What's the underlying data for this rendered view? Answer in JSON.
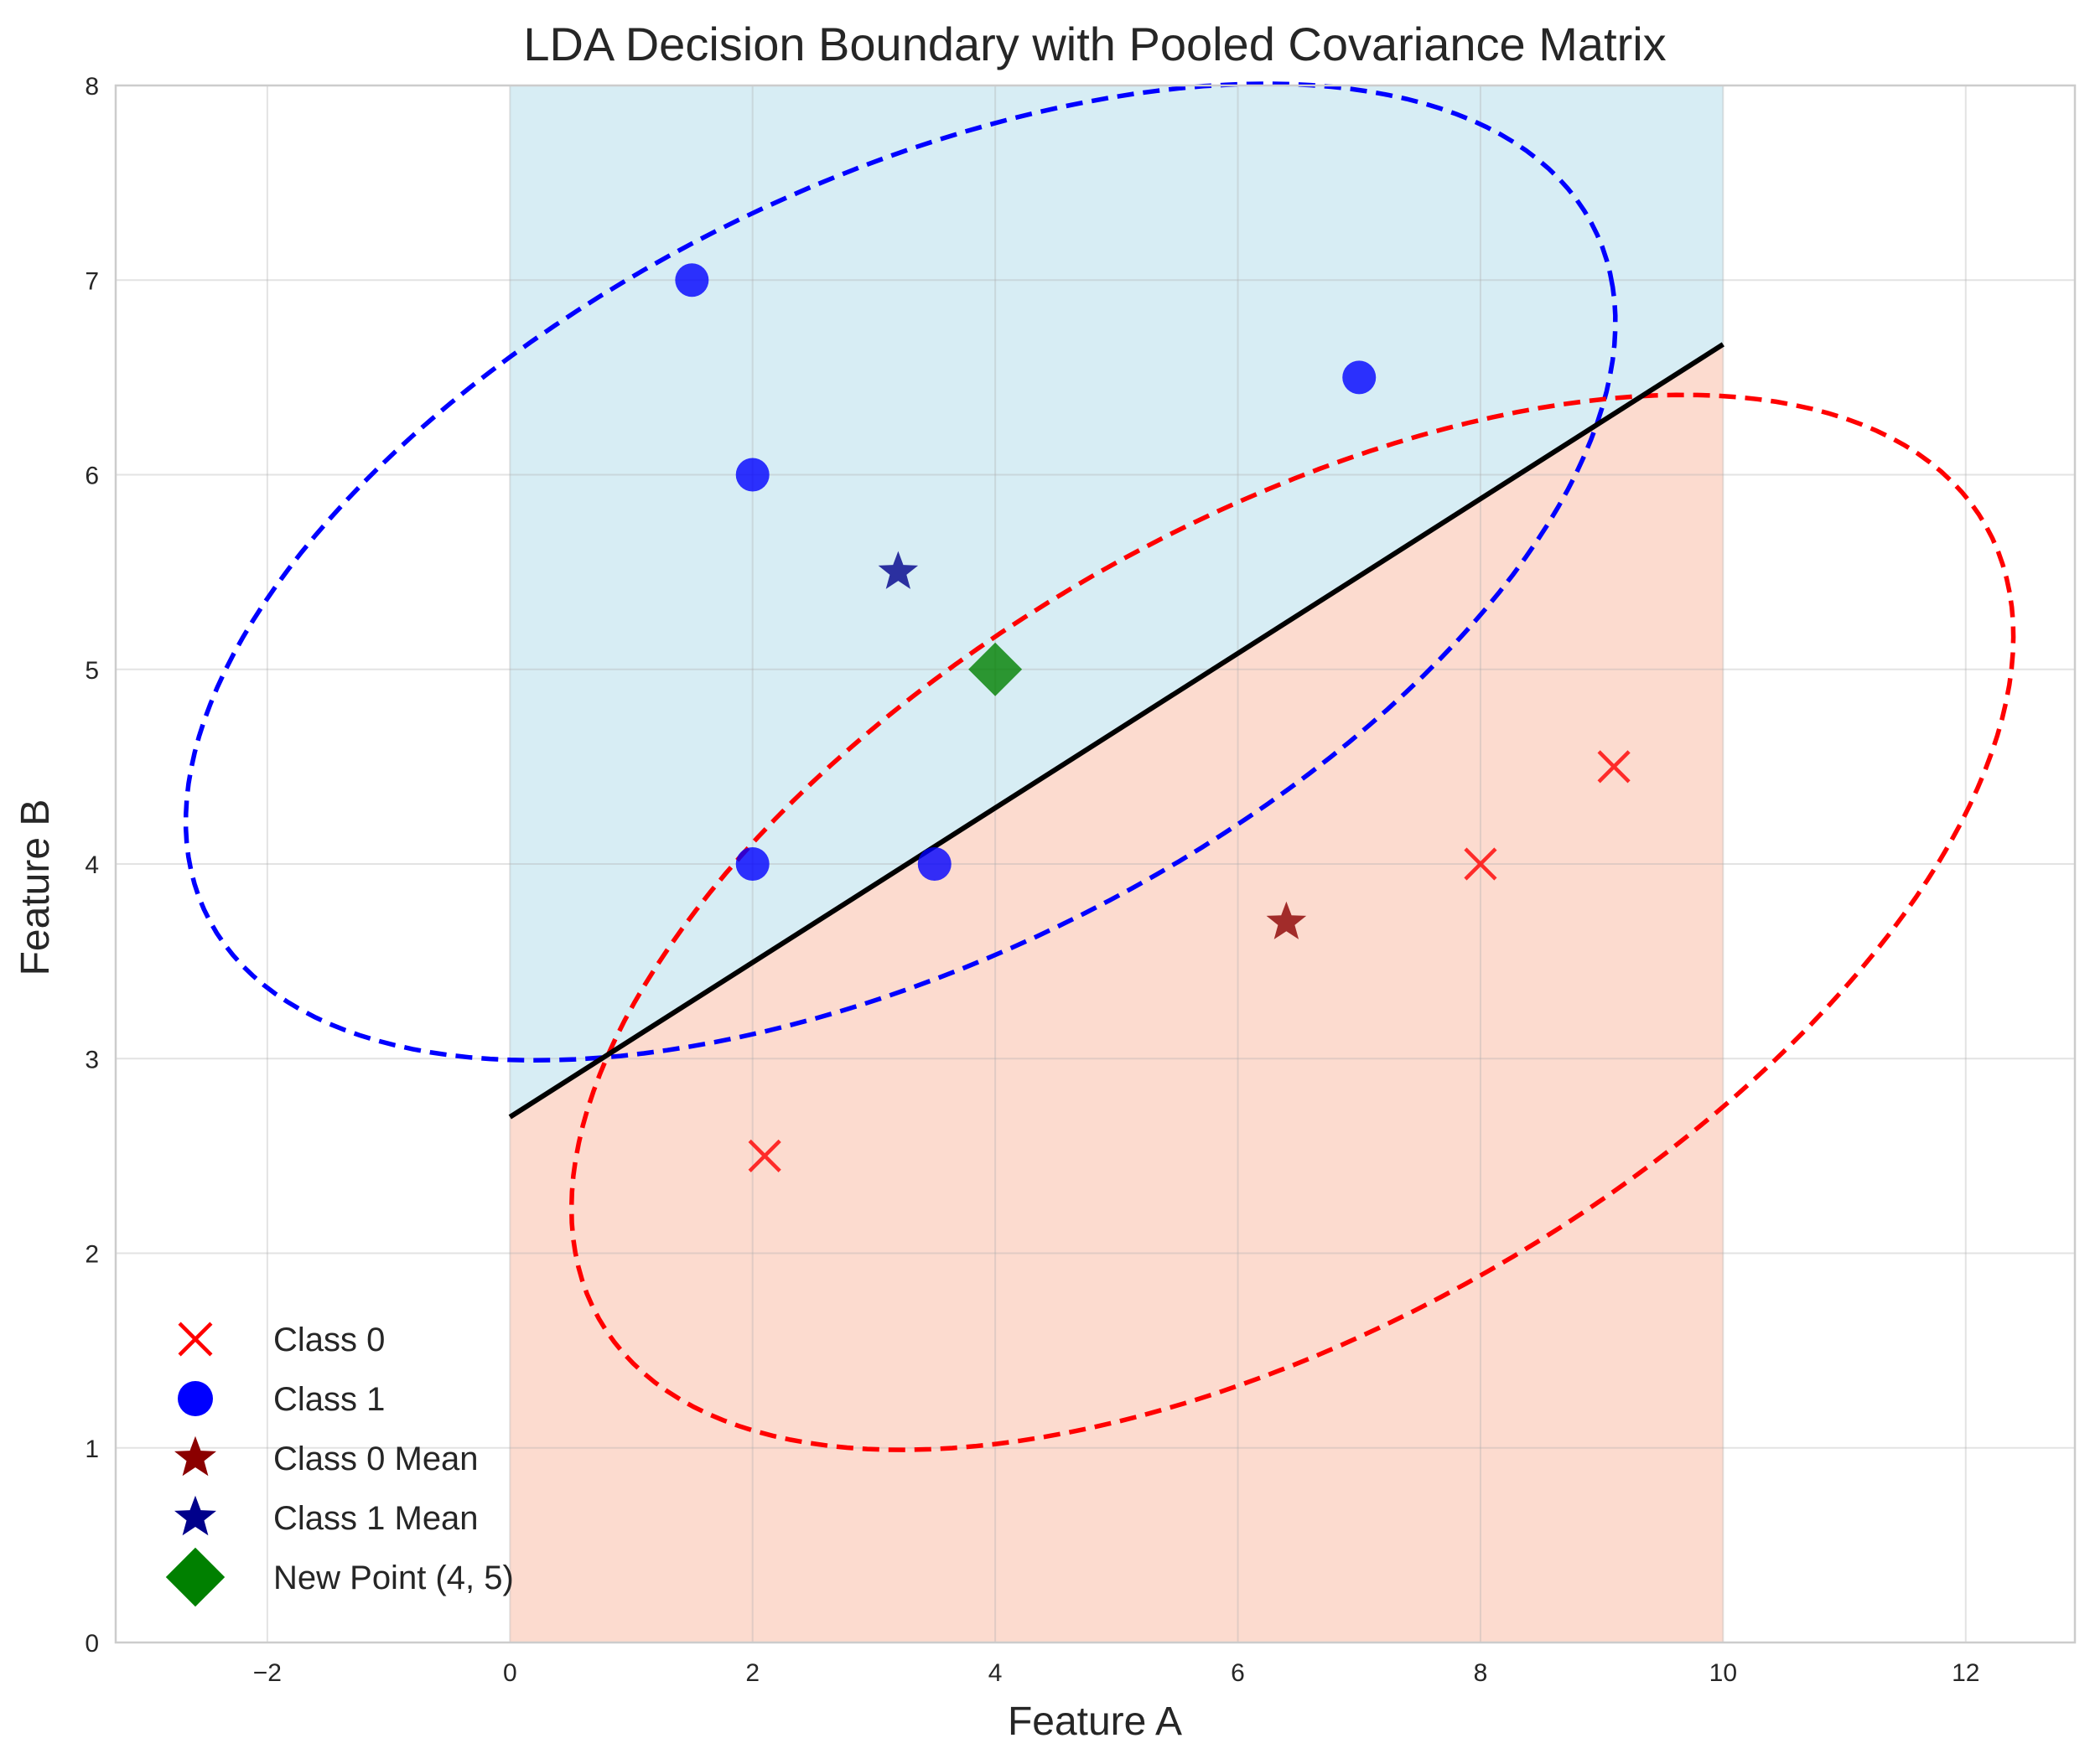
{
  "chart_data": {
    "type": "scatter",
    "title": "LDA Decision Boundary with Pooled Covariance Matrix",
    "xlabel": "Feature A",
    "ylabel": "Feature B",
    "xlim": [
      -3.25,
      12.9
    ],
    "ylim": [
      0,
      8
    ],
    "xticks": [
      -2,
      0,
      2,
      4,
      6,
      8,
      10,
      12
    ],
    "xtick_labels": [
      "−2",
      "0",
      "2",
      "4",
      "6",
      "8",
      "10",
      "12"
    ],
    "yticks": [
      0,
      1,
      2,
      3,
      4,
      5,
      6,
      7,
      8
    ],
    "ytick_labels": [
      "0",
      "1",
      "2",
      "3",
      "4",
      "5",
      "6",
      "7",
      "8"
    ],
    "grid": true,
    "legend_position": "lower-left",
    "regions": [
      {
        "class": "Class 1",
        "color": "#d5ecf3",
        "polygon": [
          [
            0,
            8
          ],
          [
            10,
            8
          ],
          [
            10,
            6.67
          ],
          [
            0,
            2.7
          ]
        ]
      },
      {
        "class": "Class 0",
        "color": "#fcd9cc",
        "polygon": [
          [
            0,
            2.7
          ],
          [
            10,
            6.67
          ],
          [
            10,
            0
          ],
          [
            0,
            0
          ]
        ]
      }
    ],
    "boundary": {
      "color": "#000000",
      "x": [
        0,
        10
      ],
      "y": [
        2.7,
        6.67
      ]
    },
    "ellipses": [
      {
        "class": "Class 1",
        "color": "#0000ff",
        "center": [
          3.22,
          5.5
        ],
        "rx": 6.05,
        "ry": 2.1,
        "angle_deg": 14
      },
      {
        "class": "Class 0",
        "color": "#ff0000",
        "center": [
          6.45,
          3.7
        ],
        "rx": 6.15,
        "ry": 2.2,
        "angle_deg": 16
      }
    ],
    "series": [
      {
        "name": "Class 0",
        "marker": "x",
        "color": "#ff0000",
        "points": [
          [
            2.1,
            2.5
          ],
          [
            8.0,
            4.0
          ],
          [
            9.1,
            4.5
          ]
        ]
      },
      {
        "name": "Class 1",
        "marker": "circle",
        "color": "#0000ff",
        "points": [
          [
            1.5,
            7.0
          ],
          [
            2.0,
            6.0
          ],
          [
            2.0,
            4.0
          ],
          [
            3.5,
            4.0
          ],
          [
            7.0,
            6.5
          ]
        ]
      },
      {
        "name": "Class 0 Mean",
        "marker": "star",
        "color": "#8b0000",
        "points": [
          [
            6.4,
            3.7
          ]
        ]
      },
      {
        "name": "Class 1 Mean",
        "marker": "star",
        "color": "#00008b",
        "points": [
          [
            3.2,
            5.5
          ]
        ]
      },
      {
        "name": "New Point (4, 5)",
        "marker": "diamond",
        "color": "#008000",
        "points": [
          [
            4.0,
            5.0
          ]
        ]
      }
    ]
  }
}
